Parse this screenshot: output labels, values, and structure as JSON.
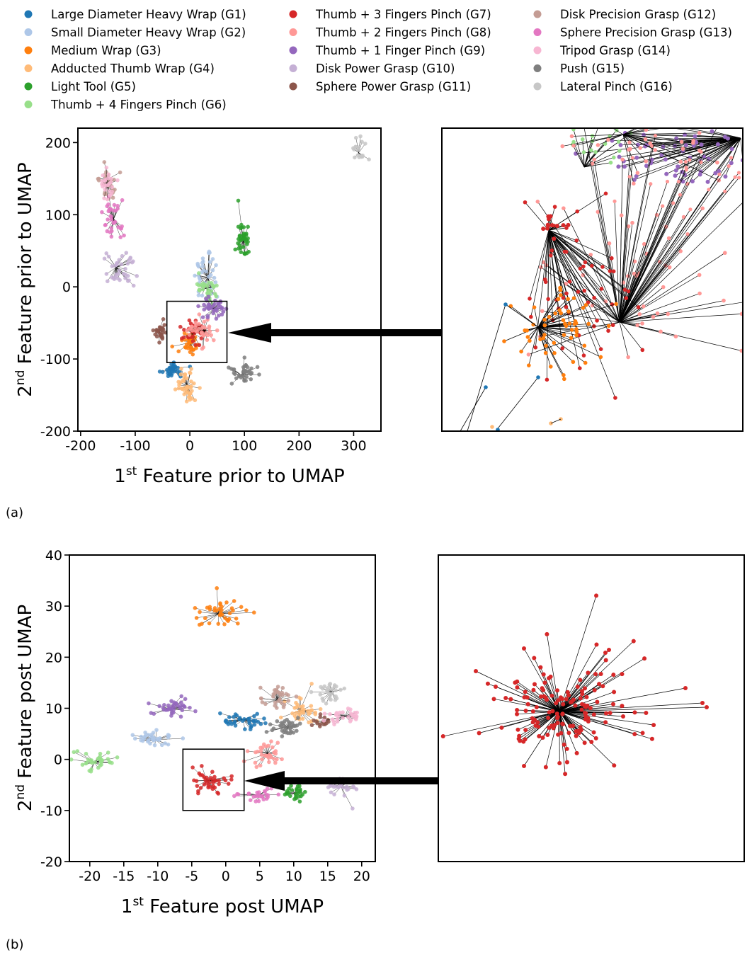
{
  "legend": [
    {
      "id": "G1",
      "label": "Large Diameter Heavy Wrap (G1)",
      "color": "#1f77b4"
    },
    {
      "id": "G2",
      "label": "Small Diameter Heavy Wrap (G2)",
      "color": "#aec7e8"
    },
    {
      "id": "G3",
      "label": "Medium Wrap (G3)",
      "color": "#ff7f0e"
    },
    {
      "id": "G4",
      "label": "Adducted Thumb Wrap (G4)",
      "color": "#ffbb78"
    },
    {
      "id": "G5",
      "label": "Light Tool (G5)",
      "color": "#2ca02c"
    },
    {
      "id": "G6",
      "label": "Thumb + 4 Fingers Pinch (G6)",
      "color": "#98df8a"
    },
    {
      "id": "G7",
      "label": "Thumb + 3 Fingers Pinch (G7)",
      "color": "#d62728"
    },
    {
      "id": "G8",
      "label": "Thumb + 2 Fingers Pinch (G8)",
      "color": "#ff9896"
    },
    {
      "id": "G9",
      "label": "Thumb + 1 Finger Pinch (G9)",
      "color": "#9467bd"
    },
    {
      "id": "G10",
      "label": "Disk Power Grasp (G10)",
      "color": "#c5b0d5"
    },
    {
      "id": "G11",
      "label": "Sphere Power Grasp (G11)",
      "color": "#8c564b"
    },
    {
      "id": "G12",
      "label": "Disk Precision Grasp (G12)",
      "color": "#c49c94"
    },
    {
      "id": "G13",
      "label": "Sphere Precision Grasp (G13)",
      "color": "#e377c2"
    },
    {
      "id": "G14",
      "label": "Tripod Grasp (G14)",
      "color": "#f7b6d2"
    },
    {
      "id": "G15",
      "label": "Push (G15)",
      "color": "#7f7f7f"
    },
    {
      "id": "G16",
      "label": "Lateral Pinch (G16)",
      "color": "#c7c7c7"
    }
  ],
  "panel_a_label": "(a)",
  "panel_b_label": "(b)",
  "chart_data": [
    {
      "type": "scatter",
      "panel": "a",
      "xlabel_base": "1",
      "xlabel_sup": "st",
      "xlabel_rest": " Feature prior to UMAP",
      "ylabel_base": "2",
      "ylabel_sup": "nd",
      "ylabel_rest": " Feature prior to UMAP",
      "xlim": [
        -205,
        350
      ],
      "ylim": [
        -200,
        220
      ],
      "xticks": [
        -200,
        -100,
        0,
        100,
        200,
        300
      ],
      "yticks": [
        -200,
        -100,
        0,
        100,
        200
      ],
      "zoom_box": {
        "x": [
          -42,
          68
        ],
        "y": [
          -105,
          -20
        ]
      },
      "clusters": [
        {
          "group": "G1",
          "center": [
            -33,
            -115
          ],
          "spread": [
            12,
            6
          ],
          "n": 34
        },
        {
          "group": "G2",
          "center": [
            32,
            15
          ],
          "spread": [
            12,
            20
          ],
          "n": 38
        },
        {
          "group": "G3",
          "center": [
            0,
            -78
          ],
          "spread": [
            8,
            10
          ],
          "n": 36
        },
        {
          "group": "G4",
          "center": [
            -5,
            -138
          ],
          "spread": [
            10,
            14
          ],
          "n": 42
        },
        {
          "group": "G5",
          "center": [
            98,
            65
          ],
          "spread": [
            6,
            13
          ],
          "n": 40
        },
        {
          "group": "G6",
          "center": [
            32,
            -2
          ],
          "spread": [
            10,
            9
          ],
          "n": 34
        },
        {
          "group": "G7",
          "center": [
            5,
            -62
          ],
          "spread": [
            9,
            8
          ],
          "n": 34
        },
        {
          "group": "G8",
          "center": [
            25,
            -60
          ],
          "spread": [
            12,
            14
          ],
          "n": 34
        },
        {
          "group": "G9",
          "center": [
            45,
            -30
          ],
          "spread": [
            14,
            7
          ],
          "n": 36
        },
        {
          "group": "G10",
          "center": [
            -130,
            25
          ],
          "spread": [
            14,
            12
          ],
          "n": 38
        },
        {
          "group": "G11",
          "center": [
            -55,
            -62
          ],
          "spread": [
            7,
            6
          ],
          "n": 28
        },
        {
          "group": "G12",
          "center": [
            -150,
            145
          ],
          "spread": [
            8,
            12
          ],
          "n": 30
        },
        {
          "group": "G13",
          "center": [
            -140,
            95
          ],
          "spread": [
            9,
            12
          ],
          "n": 34
        },
        {
          "group": "G14",
          "center": [
            -150,
            145
          ],
          "spread": [
            10,
            12
          ],
          "n": 24
        },
        {
          "group": "G15",
          "center": [
            100,
            -120
          ],
          "spread": [
            14,
            8
          ],
          "n": 36
        },
        {
          "group": "G16",
          "center": [
            310,
            190
          ],
          "spread": [
            6,
            10
          ],
          "n": 18
        }
      ]
    },
    {
      "type": "scatter",
      "panel": "b",
      "xlabel_base": "1",
      "xlabel_sup": "st",
      "xlabel_rest": " Feature post UMAP",
      "ylabel_base": "2",
      "ylabel_sup": "nd",
      "ylabel_rest": " Feature post UMAP",
      "xlim": [
        -23,
        22
      ],
      "ylim": [
        -20,
        40
      ],
      "xticks": [
        -20,
        -15,
        -10,
        -5,
        0,
        5,
        10,
        15,
        20
      ],
      "yticks": [
        -20,
        -10,
        0,
        10,
        20,
        30,
        40
      ],
      "zoom_box": {
        "x": [
          -6.3,
          2.7
        ],
        "y": [
          -10,
          2
        ]
      },
      "clusters": [
        {
          "group": "G1",
          "center": [
            2.5,
            7.5
          ],
          "spread": [
            1.6,
            0.8
          ],
          "n": 36
        },
        {
          "group": "G2",
          "center": [
            -10.5,
            4
          ],
          "spread": [
            1.4,
            0.8
          ],
          "n": 34
        },
        {
          "group": "G3",
          "center": [
            -0.5,
            28.5
          ],
          "spread": [
            1.6,
            1.3
          ],
          "n": 40
        },
        {
          "group": "G4",
          "center": [
            11,
            10
          ],
          "spread": [
            1.2,
            1.6
          ],
          "n": 36
        },
        {
          "group": "G5",
          "center": [
            10,
            -6.5
          ],
          "spread": [
            1.2,
            0.8
          ],
          "n": 26
        },
        {
          "group": "G6",
          "center": [
            -19,
            -0.5
          ],
          "spread": [
            1.6,
            1.0
          ],
          "n": 34
        },
        {
          "group": "G7",
          "center": [
            -2.5,
            -4
          ],
          "spread": [
            1.5,
            1.1
          ],
          "n": 40
        },
        {
          "group": "G8",
          "center": [
            6,
            1
          ],
          "spread": [
            1.3,
            1.4
          ],
          "n": 34
        },
        {
          "group": "G9",
          "center": [
            -8,
            10
          ],
          "spread": [
            1.6,
            0.9
          ],
          "n": 38
        },
        {
          "group": "G10",
          "center": [
            17,
            -5.5
          ],
          "spread": [
            1.0,
            1.2
          ],
          "n": 30
        },
        {
          "group": "G11",
          "center": [
            14.5,
            7.5
          ],
          "spread": [
            0.8,
            0.6
          ],
          "n": 16
        },
        {
          "group": "G12",
          "center": [
            7.5,
            12
          ],
          "spread": [
            1.3,
            1.3
          ],
          "n": 30
        },
        {
          "group": "G13",
          "center": [
            5,
            -7
          ],
          "spread": [
            1.2,
            0.7
          ],
          "n": 28
        },
        {
          "group": "G14",
          "center": [
            17.5,
            8.5
          ],
          "spread": [
            1.3,
            0.8
          ],
          "n": 30
        },
        {
          "group": "G15",
          "center": [
            9,
            6.5
          ],
          "spread": [
            1.5,
            1.0
          ],
          "n": 36
        },
        {
          "group": "G16",
          "center": [
            15.5,
            13
          ],
          "spread": [
            1.2,
            1.0
          ],
          "n": 28
        }
      ]
    }
  ],
  "zoom_a": {
    "description_groups": [
      "G7",
      "G3",
      "G8",
      "G9",
      "G6",
      "G1",
      "G4"
    ]
  },
  "zoom_b": {
    "group": "G7"
  }
}
